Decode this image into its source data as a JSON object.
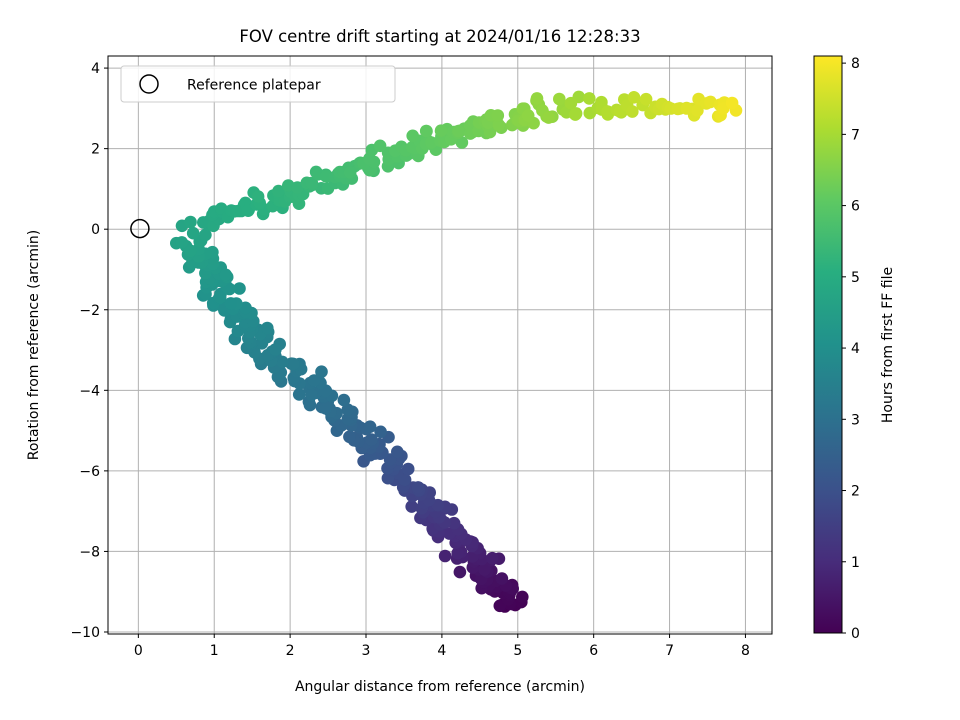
{
  "chart_data": {
    "type": "scatter",
    "title": "FOV centre drift starting at 2024/01/16 12:28:33",
    "xlabel": "Angular distance from reference (arcmin)",
    "ylabel": "Rotation from reference (arcmin)",
    "xlim": [
      -0.4,
      8.35
    ],
    "ylim": [
      -10.05,
      4.3
    ],
    "x_ticks": [
      0,
      1,
      2,
      3,
      4,
      5,
      6,
      7,
      8
    ],
    "y_ticks": [
      -10,
      -8,
      -6,
      -4,
      -2,
      0,
      2,
      4
    ],
    "grid": true,
    "legend": {
      "position": "top-left",
      "entries": [
        "Reference platepar"
      ]
    },
    "reference_point": {
      "x": 0,
      "y": 0,
      "marker": "open-circle"
    },
    "colorbar": {
      "label": "Hours from first FF file",
      "colormap": "viridis",
      "range": [
        0,
        8.1
      ],
      "ticks": [
        0,
        1,
        2,
        3,
        4,
        5,
        6,
        7,
        8
      ]
    },
    "path_segments": [
      {
        "x0": 4.95,
        "y0": -9.4,
        "x1": 4.6,
        "y1": -8.6,
        "h0": 0.0,
        "h1": 0.4,
        "n": 30
      },
      {
        "x0": 4.6,
        "y0": -8.6,
        "x1": 3.9,
        "y1": -7.0,
        "h0": 0.4,
        "h1": 1.4,
        "n": 50
      },
      {
        "x0": 3.9,
        "y0": -7.0,
        "x1": 2.7,
        "y1": -4.6,
        "h0": 1.4,
        "h1": 2.8,
        "n": 70
      },
      {
        "x0": 2.7,
        "y0": -4.6,
        "x1": 1.8,
        "y1": -3.2,
        "h0": 2.8,
        "h1": 3.4,
        "n": 40
      },
      {
        "x0": 1.8,
        "y0": -3.2,
        "x1": 1.2,
        "y1": -1.8,
        "h0": 3.4,
        "h1": 4.0,
        "n": 40
      },
      {
        "x0": 1.2,
        "y0": -1.8,
        "x1": 0.7,
        "y1": -0.3,
        "h0": 4.0,
        "h1": 4.7,
        "n": 45
      },
      {
        "x0": 0.6,
        "y0": 0.0,
        "x1": 1.3,
        "y1": 0.4,
        "h0": 4.7,
        "h1": 5.0,
        "n": 15
      },
      {
        "x0": 1.3,
        "y0": 0.4,
        "x1": 2.6,
        "y1": 1.3,
        "h0": 5.0,
        "h1": 5.5,
        "n": 45
      },
      {
        "x0": 2.6,
        "y0": 1.3,
        "x1": 4.2,
        "y1": 2.4,
        "h0": 5.5,
        "h1": 6.2,
        "n": 60
      },
      {
        "x0": 4.2,
        "y0": 2.4,
        "x1": 5.5,
        "y1": 3.0,
        "h0": 6.2,
        "h1": 6.8,
        "n": 45
      },
      {
        "x0": 5.5,
        "y0": 3.0,
        "x1": 7.9,
        "y1": 3.1,
        "h0": 6.8,
        "h1": 8.0,
        "n": 50
      }
    ],
    "scatter_spread": {
      "along_track": 0.06,
      "cross_track": 0.13
    }
  }
}
